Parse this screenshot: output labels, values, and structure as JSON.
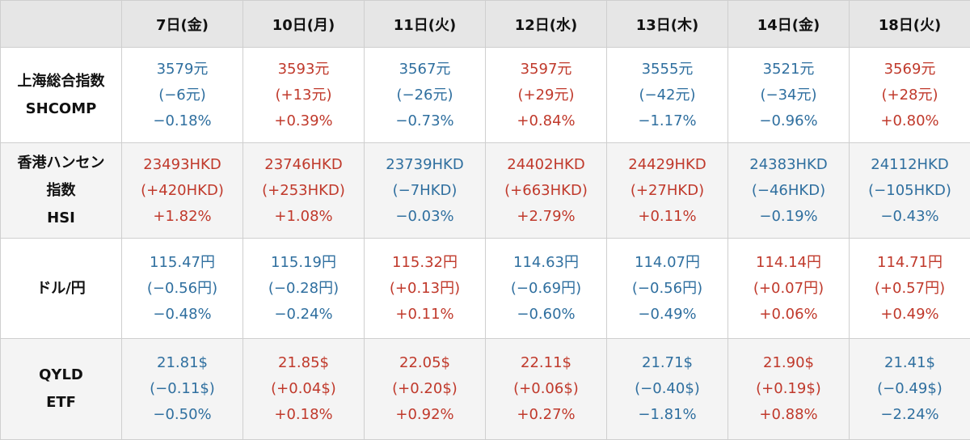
{
  "table": {
    "columns": [
      "7日(金)",
      "10日(月)",
      "11日(火)",
      "12日(水)",
      "13日(木)",
      "14日(金)",
      "18日(火)"
    ],
    "rows": [
      {
        "name_lines": [
          "上海総合指数",
          "SHCOMP"
        ],
        "cells": [
          {
            "value": "3579元",
            "change": "(−6元)",
            "pct": "−0.18%",
            "trend": "down"
          },
          {
            "value": "3593元",
            "change": "(+13元)",
            "pct": "+0.39%",
            "trend": "up"
          },
          {
            "value": "3567元",
            "change": "(−26元)",
            "pct": "−0.73%",
            "trend": "down"
          },
          {
            "value": "3597元",
            "change": "(+29元)",
            "pct": "+0.84%",
            "trend": "up"
          },
          {
            "value": "3555元",
            "change": "(−42元)",
            "pct": "−1.17%",
            "trend": "down"
          },
          {
            "value": "3521元",
            "change": "(−34元)",
            "pct": "−0.96%",
            "trend": "down"
          },
          {
            "value": "3569元",
            "change": "(+28元)",
            "pct": "+0.80%",
            "trend": "up"
          }
        ]
      },
      {
        "name_lines": [
          "香港ハンセン",
          "指数",
          "HSI"
        ],
        "cells": [
          {
            "value": "23493HKD",
            "change": "(+420HKD)",
            "pct": "+1.82%",
            "trend": "up"
          },
          {
            "value": "23746HKD",
            "change": "(+253HKD)",
            "pct": "+1.08%",
            "trend": "up"
          },
          {
            "value": "23739HKD",
            "change": "(−7HKD)",
            "pct": "−0.03%",
            "trend": "down"
          },
          {
            "value": "24402HKD",
            "change": "(+663HKD)",
            "pct": "+2.79%",
            "trend": "up"
          },
          {
            "value": "24429HKD",
            "change": "(+27HKD)",
            "pct": "+0.11%",
            "trend": "up"
          },
          {
            "value": "24383HKD",
            "change": "(−46HKD)",
            "pct": "−0.19%",
            "trend": "down"
          },
          {
            "value": "24112HKD",
            "change": "(−105HKD)",
            "pct": "−0.43%",
            "trend": "down"
          }
        ]
      },
      {
        "name_lines": [
          "ドル/円"
        ],
        "cells": [
          {
            "value": "115.47円",
            "change": "(−0.56円)",
            "pct": "−0.48%",
            "trend": "down"
          },
          {
            "value": "115.19円",
            "change": "(−0.28円)",
            "pct": "−0.24%",
            "trend": "down"
          },
          {
            "value": "115.32円",
            "change": "(+0.13円)",
            "pct": "+0.11%",
            "trend": "up"
          },
          {
            "value": "114.63円",
            "change": "(−0.69円)",
            "pct": "−0.60%",
            "trend": "down"
          },
          {
            "value": "114.07円",
            "change": "(−0.56円)",
            "pct": "−0.49%",
            "trend": "down"
          },
          {
            "value": "114.14円",
            "change": "(+0.07円)",
            "pct": "+0.06%",
            "trend": "up"
          },
          {
            "value": "114.71円",
            "change": "(+0.57円)",
            "pct": "+0.49%",
            "trend": "up"
          }
        ]
      },
      {
        "name_lines": [
          "QYLD",
          "ETF"
        ],
        "cells": [
          {
            "value": "21.81$",
            "change": "(−0.11$)",
            "pct": "−0.50%",
            "trend": "down"
          },
          {
            "value": "21.85$",
            "change": "(+0.04$)",
            "pct": "+0.18%",
            "trend": "up"
          },
          {
            "value": "22.05$",
            "change": "(+0.20$)",
            "pct": "+0.92%",
            "trend": "up"
          },
          {
            "value": "22.11$",
            "change": "(+0.06$)",
            "pct": "+0.27%",
            "trend": "up"
          },
          {
            "value": "21.71$",
            "change": "(−0.40$)",
            "pct": "−1.81%",
            "trend": "down"
          },
          {
            "value": "21.90$",
            "change": "(+0.19$)",
            "pct": "+0.88%",
            "trend": "up"
          },
          {
            "value": "21.41$",
            "change": "(−0.49$)",
            "pct": "−2.24%",
            "trend": "down"
          }
        ]
      }
    ]
  },
  "colors": {
    "up": "#c0392b",
    "down": "#2f6f9f",
    "header_bg": "#e6e6e6",
    "alt_row_bg": "#f4f4f4"
  }
}
